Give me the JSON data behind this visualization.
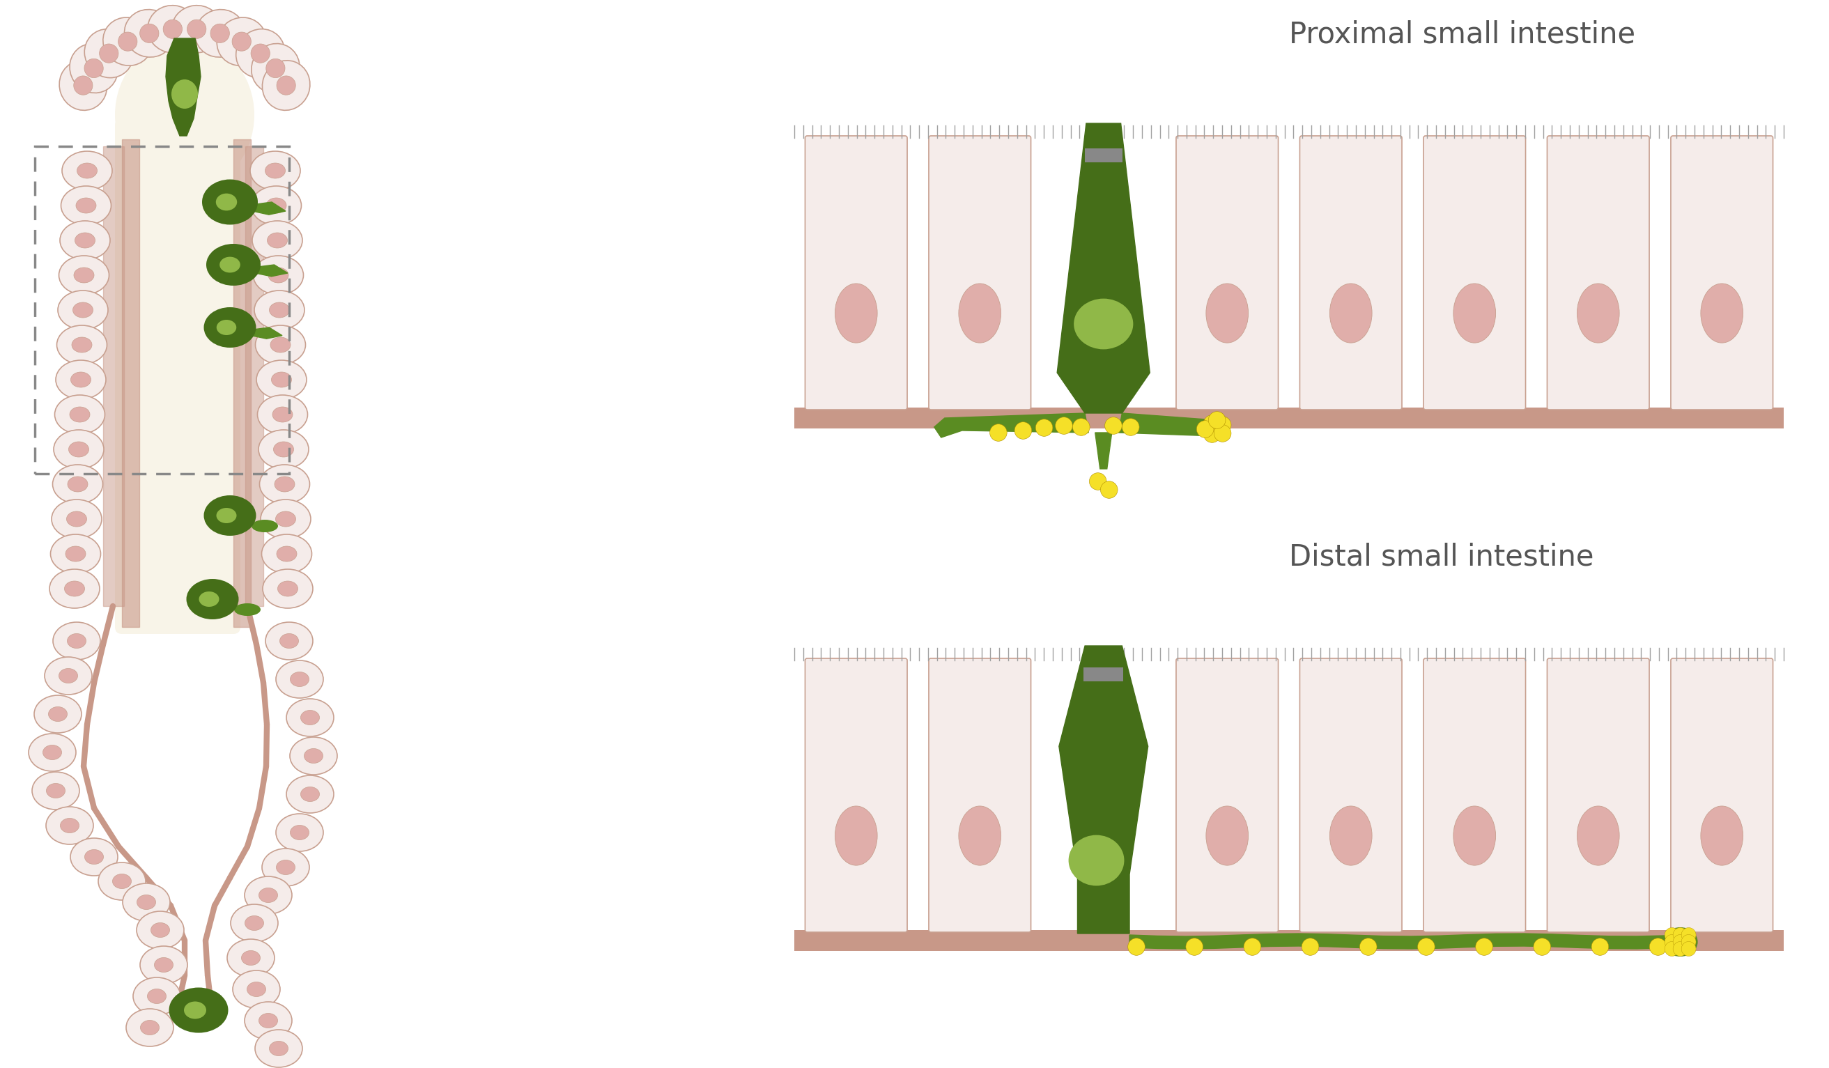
{
  "bg_color": "#ffffff",
  "title_proximal": "Proximal small intestine",
  "title_distal": "Distal small intestine",
  "title_fontsize": 30,
  "title_color": "#555555",
  "cell_fill": "#f5ecea",
  "cell_fill2": "#f0e8e4",
  "cell_edge": "#c8a090",
  "nucleus_fill": "#e0aeaa",
  "green_dark": "#456e18",
  "green_mid": "#5a8c22",
  "green_light": "#6fa030",
  "green_pale": "#90b848",
  "green_nucleus": "#a0c055",
  "yellow": "#f5e028",
  "gray_brush": "#a0a0a0",
  "gray_dark": "#888888",
  "pink_base": "#c89888",
  "dashed_color": "#888888",
  "lumen_color": "#f8f4e8",
  "shadow_color": "#cccccc"
}
